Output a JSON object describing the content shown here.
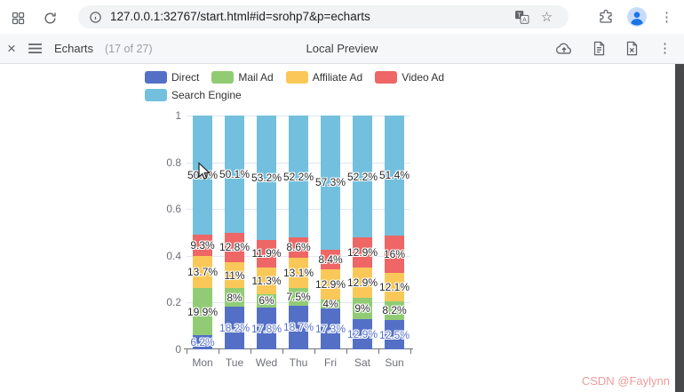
{
  "browser": {
    "url": "127.0.0.1:32767/start.html#id=srohp7&p=echarts",
    "star_glyph": "☆",
    "kebab_glyph": "⋮"
  },
  "preview_toolbar": {
    "close_glyph": "×",
    "title": "Echarts",
    "count": "(17 of 27)",
    "center_title": "Local Preview",
    "kebab_glyph": "⋮"
  },
  "watermark": {
    "text": "CSDN @Faylynn"
  },
  "chart_data": {
    "type": "bar",
    "variant": "percentage-stacked",
    "unit": "%",
    "categories": [
      "Mon",
      "Tue",
      "Wed",
      "Thu",
      "Fri",
      "Sat",
      "Sun"
    ],
    "series": [
      {
        "name": "Direct",
        "color": "#5470c6",
        "label_color": "#5470c6",
        "values": [
          6.2,
          18.2,
          17.8,
          18.7,
          17.3,
          12.9,
          12.5
        ]
      },
      {
        "name": "Mail Ad",
        "color": "#91cc75",
        "label_color": "#2b2b2b",
        "values": [
          19.9,
          8,
          6,
          7.5,
          4,
          9,
          8.2
        ]
      },
      {
        "name": "Affiliate Ad",
        "color": "#fac858",
        "label_color": "#2b2b2b",
        "values": [
          13.7,
          11,
          11.3,
          13.1,
          12.9,
          12.9,
          12.1
        ]
      },
      {
        "name": "Video Ad",
        "color": "#ee6666",
        "label_color": "#2b2b2b",
        "values": [
          9.3,
          12.8,
          11.9,
          8.6,
          8.4,
          12.9,
          16
        ]
      },
      {
        "name": "Search Engine",
        "color": "#73c0de",
        "label_color": "#2b2b2b",
        "values": [
          50.9,
          50.1,
          53.2,
          52.2,
          57.3,
          52.2,
          51.4
        ]
      }
    ],
    "ylim": [
      0,
      1
    ],
    "yticks": [
      0,
      0.2,
      0.4,
      0.6,
      0.8,
      1
    ],
    "grid": true,
    "legend_position": "top",
    "legend": [
      "Direct",
      "Mail Ad",
      "Affiliate Ad",
      "Video Ad",
      "Search Engine"
    ]
  }
}
